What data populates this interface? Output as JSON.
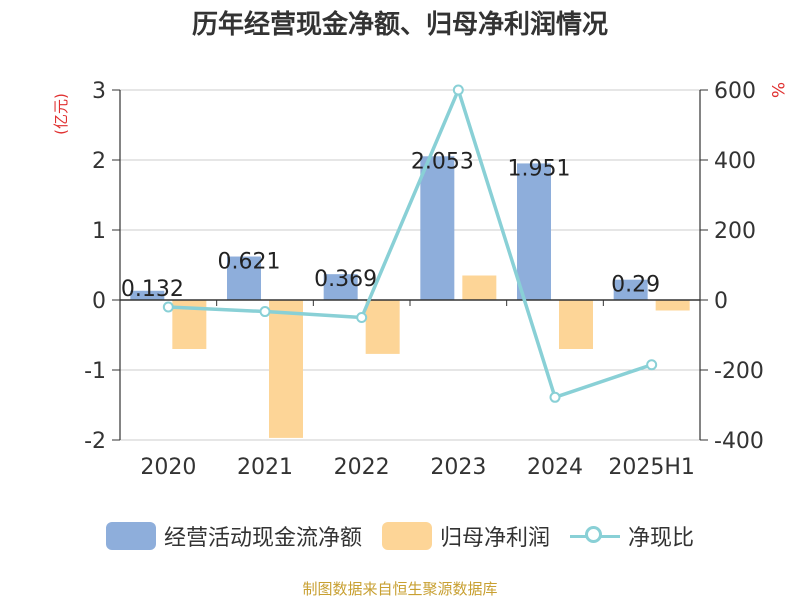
{
  "title": "历年经营现金净额、归母净利润情况",
  "source_note": "制图数据来自恒生聚源数据库",
  "colors": {
    "bar_cash": "#8eaedb",
    "bar_profit": "#fdd597",
    "line_ratio": "#89d0d6",
    "unit_label": "#e03030",
    "axis": "#333333",
    "grid": "#cccccc"
  },
  "chart_data": {
    "type": "bar",
    "categories": [
      "2020",
      "2021",
      "2022",
      "2023",
      "2024",
      "2025H1"
    ],
    "left_axis": {
      "unit": "(亿元)",
      "ylim": [
        -2,
        3
      ],
      "ticks": [
        "-2",
        "-1",
        "0",
        "1",
        "2",
        "3"
      ]
    },
    "right_axis": {
      "unit": "%",
      "ylim": [
        -400,
        600
      ],
      "ticks": [
        "-400",
        "-200",
        "0",
        "200",
        "400",
        "600"
      ]
    },
    "series": [
      {
        "name": "经营活动现金流净额",
        "type": "bar",
        "axis": "left",
        "values": [
          0.132,
          0.621,
          0.369,
          2.053,
          1.951,
          0.29
        ],
        "labels": [
          "0.132",
          "0.621",
          "0.369",
          "2.053",
          "1.951",
          "0.29"
        ]
      },
      {
        "name": "归母净利润",
        "type": "bar",
        "axis": "left",
        "values": [
          -0.7,
          -1.97,
          -0.77,
          0.35,
          -0.7,
          -0.15
        ]
      },
      {
        "name": "净现比",
        "type": "line",
        "axis": "right",
        "values": [
          -20,
          -33,
          -50,
          600,
          -278,
          -185
        ]
      }
    ],
    "grid": true,
    "legend_position": "bottom"
  }
}
